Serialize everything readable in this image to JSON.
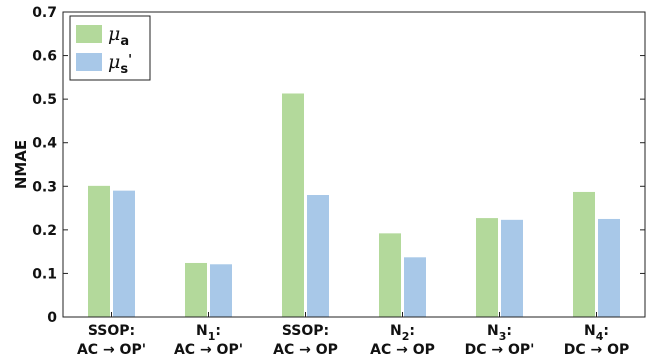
{
  "chart_data": {
    "type": "bar",
    "ylabel": "NMAE",
    "ylim": [
      0,
      0.7
    ],
    "yticks": [
      "0",
      "0.1",
      "0.2",
      "0.3",
      "0.4",
      "0.5",
      "0.6",
      "0.7"
    ],
    "categories": [
      {
        "line1": "SSOP:",
        "line1_sub": "",
        "line1_suffix": "",
        "line2": "AC → OP'"
      },
      {
        "line1": "N",
        "line1_sub": "1",
        "line1_suffix": ":",
        "line2": "AC → OP'"
      },
      {
        "line1": "SSOP:",
        "line1_sub": "",
        "line1_suffix": "",
        "line2": "AC → OP"
      },
      {
        "line1": "N",
        "line1_sub": "2",
        "line1_suffix": ":",
        "line2": "AC → OP"
      },
      {
        "line1": "N",
        "line1_sub": "3",
        "line1_suffix": ":",
        "line2": "DC → OP'"
      },
      {
        "line1": "N",
        "line1_sub": "4",
        "line1_suffix": ":",
        "line2": "DC → OP"
      }
    ],
    "series": [
      {
        "name": "μ",
        "name_sub": "a",
        "name_suffix": "",
        "color": "#b3d99b",
        "values": [
          0.301,
          0.124,
          0.513,
          0.192,
          0.227,
          0.287
        ]
      },
      {
        "name": "μ",
        "name_sub": "s",
        "name_suffix": "'",
        "color": "#a8c8e8",
        "values": [
          0.29,
          0.121,
          0.28,
          0.137,
          0.223,
          0.225
        ]
      }
    ],
    "grid": false,
    "legend_position": "top-left"
  }
}
